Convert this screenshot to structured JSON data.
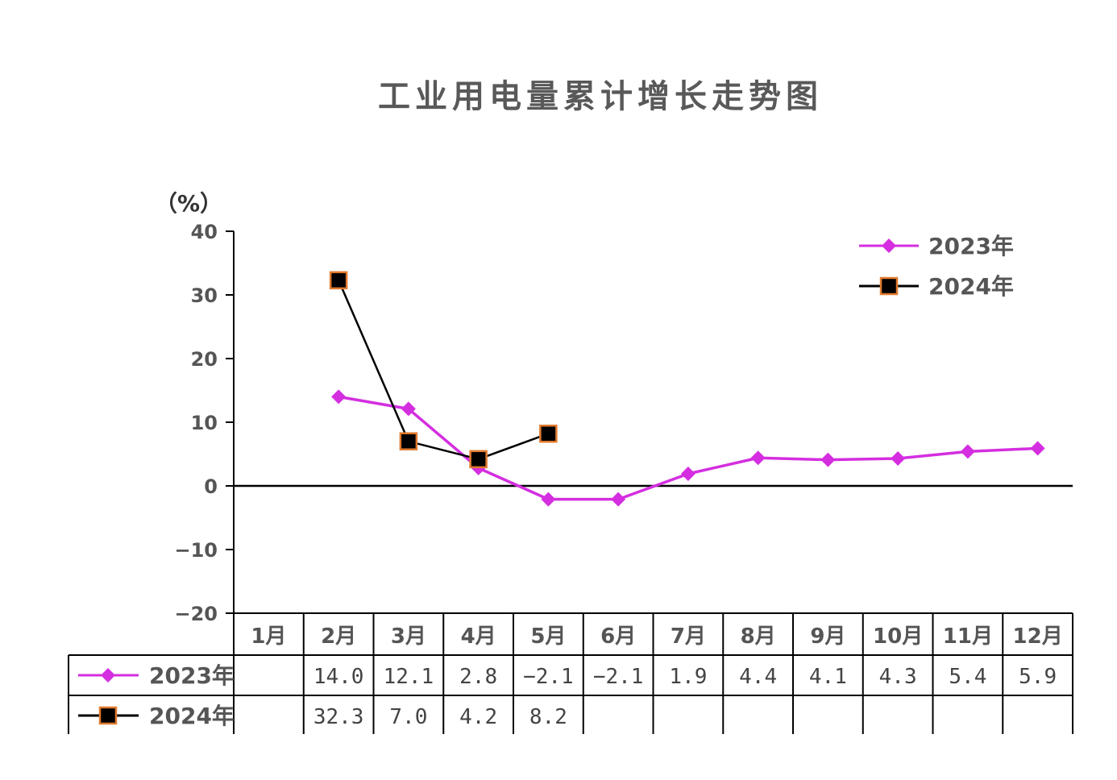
{
  "chart_data": {
    "type": "line",
    "title": "工业用电量累计增长走势图",
    "ylabel": "（%）",
    "ylim": [
      -20,
      40
    ],
    "yticks": [
      40,
      30,
      20,
      10,
      0,
      -10,
      -20
    ],
    "ytick_labels": [
      "40",
      "30",
      "20",
      "10",
      "0",
      "−10",
      "−20"
    ],
    "categories": [
      "1月",
      "2月",
      "3月",
      "4月",
      "5月",
      "6月",
      "7月",
      "8月",
      "9月",
      "10月",
      "11月",
      "12月"
    ],
    "series": [
      {
        "name": "2023年",
        "color": "#D42EE0",
        "marker": "diamond",
        "values": [
          null,
          14.0,
          12.1,
          2.8,
          -2.1,
          -2.1,
          1.9,
          4.4,
          4.1,
          4.3,
          5.4,
          5.9
        ],
        "labels": [
          "",
          "14.0",
          "12.1",
          "2.8",
          "−2.1",
          "−2.1",
          "1.9",
          "4.4",
          "4.1",
          "4.3",
          "5.4",
          "5.9"
        ]
      },
      {
        "name": "2024年",
        "color": "#000000",
        "marker_edge": "#E07A2E",
        "marker": "square",
        "values": [
          null,
          32.3,
          7.0,
          4.2,
          8.2,
          null,
          null,
          null,
          null,
          null,
          null,
          null
        ],
        "labels": [
          "",
          "32.3",
          "7.0",
          "4.2",
          "8.2",
          "",
          "",
          "",
          "",
          "",
          "",
          ""
        ]
      }
    ],
    "legend_position": "top-right",
    "data_table": true
  }
}
